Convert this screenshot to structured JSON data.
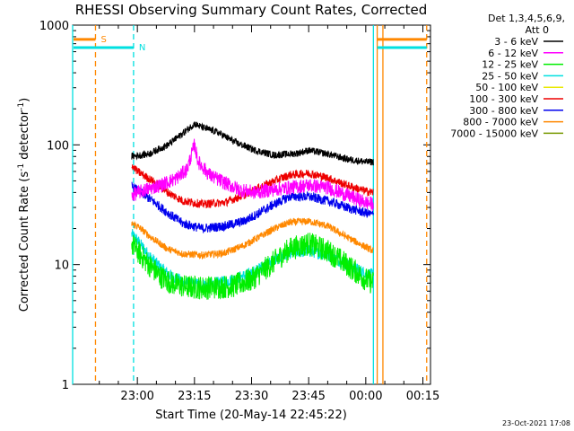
{
  "chart_data": {
    "type": "line",
    "title": "RHESSI Observing Summary Count Rates, Corrected",
    "xlabel": "Start Time (20-May-14 22:45:22)",
    "ylabel": "Corrected Count Rate (s-1 detector-1)",
    "ylabel_main": "Corrected Count Rate (s",
    "ylabel_sup1": "-1",
    "ylabel_mid": " detector",
    "ylabel_sup2": "-1",
    "ylabel_end": ")",
    "y_scale": "log",
    "ylim": [
      1,
      1000
    ],
    "xlim_minutes": [
      -17,
      77
    ],
    "x_ticks": [
      {
        "label": "23:00",
        "t": 0
      },
      {
        "label": "23:15",
        "t": 15
      },
      {
        "label": "23:30",
        "t": 30
      },
      {
        "label": "23:45",
        "t": 45
      },
      {
        "label": "00:00",
        "t": 60
      },
      {
        "label": "00:15",
        "t": 75
      }
    ],
    "y_ticks": [
      {
        "label": "1",
        "v": 1
      },
      {
        "label": "10",
        "v": 10
      },
      {
        "label": "100",
        "v": 100
      },
      {
        "label": "1000",
        "v": 1000
      }
    ],
    "legend_header": [
      "Det 1,3,4,5,6,9,",
      "Att 0"
    ],
    "legend_position": "right",
    "series": [
      {
        "name": "3 - 6 keV",
        "color": "#000000",
        "noise": 0.03,
        "points": [
          [
            -1.5,
            80
          ],
          [
            3,
            84
          ],
          [
            8,
            100
          ],
          [
            12,
            125
          ],
          [
            15,
            150
          ],
          [
            17,
            140
          ],
          [
            21,
            128
          ],
          [
            26,
            104
          ],
          [
            31,
            90
          ],
          [
            36,
            82
          ],
          [
            42,
            85
          ],
          [
            45,
            90
          ],
          [
            50,
            84
          ],
          [
            55,
            76
          ],
          [
            60,
            72
          ],
          [
            62,
            72
          ]
        ]
      },
      {
        "name": "6 - 12 keV",
        "color": "#ff00ff",
        "noise": 0.06,
        "points": [
          [
            -1.5,
            38
          ],
          [
            2,
            42
          ],
          [
            6,
            46
          ],
          [
            10,
            52
          ],
          [
            13,
            62
          ],
          [
            15,
            100
          ],
          [
            16,
            72
          ],
          [
            19,
            56
          ],
          [
            23,
            48
          ],
          [
            27,
            42
          ],
          [
            31,
            40
          ],
          [
            35,
            42
          ],
          [
            40,
            44
          ],
          [
            45,
            46
          ],
          [
            50,
            44
          ],
          [
            55,
            38
          ],
          [
            60,
            33
          ],
          [
            62,
            32
          ]
        ]
      },
      {
        "name": "12 - 25 keV",
        "color": "#00ee00",
        "noise": 0.1,
        "points": [
          [
            -1.5,
            15
          ],
          [
            0,
            13
          ],
          [
            3,
            10
          ],
          [
            6,
            8
          ],
          [
            9,
            7
          ],
          [
            13,
            6.5
          ],
          [
            18,
            6.4
          ],
          [
            25,
            6.6
          ],
          [
            30,
            7.5
          ],
          [
            35,
            10
          ],
          [
            40,
            13.5
          ],
          [
            45,
            15
          ],
          [
            50,
            13
          ],
          [
            55,
            10
          ],
          [
            60,
            7.5
          ],
          [
            62,
            7
          ]
        ]
      },
      {
        "name": "25 - 50 keV",
        "color": "#00e0e0",
        "noise": 0.05,
        "points": [
          [
            -1.5,
            18
          ],
          [
            0,
            16
          ],
          [
            3,
            12
          ],
          [
            6,
            9.5
          ],
          [
            9,
            8
          ],
          [
            13,
            7
          ],
          [
            18,
            6.8
          ],
          [
            24,
            7.3
          ],
          [
            30,
            8.5
          ],
          [
            35,
            10.5
          ],
          [
            40,
            12.5
          ],
          [
            45,
            13
          ],
          [
            50,
            12
          ],
          [
            55,
            10
          ],
          [
            60,
            8.5
          ],
          [
            62,
            8.2
          ]
        ]
      },
      {
        "name": "50 - 100 keV",
        "color": "#e8e800",
        "noise": 0.02,
        "points": []
      },
      {
        "name": "100 - 300 keV",
        "color": "#ee0000",
        "noise": 0.035,
        "points": [
          [
            -1.5,
            68
          ],
          [
            0,
            60
          ],
          [
            4,
            50
          ],
          [
            8,
            40
          ],
          [
            12,
            34
          ],
          [
            17,
            32
          ],
          [
            23,
            33
          ],
          [
            28,
            38
          ],
          [
            32,
            44
          ],
          [
            36,
            50
          ],
          [
            40,
            56
          ],
          [
            45,
            58
          ],
          [
            50,
            53
          ],
          [
            55,
            46
          ],
          [
            60,
            41
          ],
          [
            62,
            40
          ]
        ]
      },
      {
        "name": "300 - 800 keV",
        "color": "#0000ee",
        "noise": 0.04,
        "points": [
          [
            -1.5,
            45
          ],
          [
            0,
            42
          ],
          [
            4,
            34
          ],
          [
            8,
            27
          ],
          [
            12,
            22
          ],
          [
            17,
            20
          ],
          [
            23,
            21
          ],
          [
            28,
            23
          ],
          [
            32,
            27
          ],
          [
            36,
            32
          ],
          [
            40,
            37
          ],
          [
            45,
            37
          ],
          [
            50,
            34
          ],
          [
            55,
            30
          ],
          [
            60,
            27
          ],
          [
            62,
            26
          ]
        ]
      },
      {
        "name": "800 - 7000 keV",
        "color": "#ff8800",
        "noise": 0.03,
        "points": [
          [
            -1.5,
            22
          ],
          [
            0,
            21
          ],
          [
            4,
            16.5
          ],
          [
            8,
            13.5
          ],
          [
            12,
            12.3
          ],
          [
            17,
            12
          ],
          [
            23,
            12.5
          ],
          [
            28,
            14.5
          ],
          [
            32,
            17
          ],
          [
            36,
            20
          ],
          [
            40,
            22.5
          ],
          [
            45,
            23
          ],
          [
            50,
            21
          ],
          [
            55,
            17
          ],
          [
            60,
            14
          ],
          [
            62,
            13
          ]
        ]
      },
      {
        "name": "7000 - 15000 keV",
        "color": "#779900",
        "noise": 0.02,
        "points": []
      }
    ],
    "attenuator_markers": [
      {
        "label": "S",
        "color": "#ff8800",
        "t_start": -11,
        "t_end": 63,
        "level": 760
      },
      {
        "label": "N",
        "color": "#00e0e0",
        "t_start": -1,
        "t_end": 62,
        "level": 650
      }
    ],
    "vertical_markers": [
      {
        "t": -17,
        "color": "#00e0e0",
        "style": "solid"
      },
      {
        "t": -11,
        "color": "#ff8800",
        "style": "dashed"
      },
      {
        "t": -1,
        "color": "#00e0e0",
        "style": "dashed"
      },
      {
        "t": 62,
        "color": "#00e0e0",
        "style": "solid"
      },
      {
        "t": 63,
        "color": "#ff8800",
        "style": "solid"
      },
      {
        "t": 64.5,
        "color": "#ff8800",
        "style": "solid"
      },
      {
        "t": 76,
        "color": "#ff8800",
        "style": "dashed"
      }
    ],
    "segment_right_start": 63,
    "segment_right_end": 76,
    "footer_date": "23-Oct-2021 17:08"
  }
}
